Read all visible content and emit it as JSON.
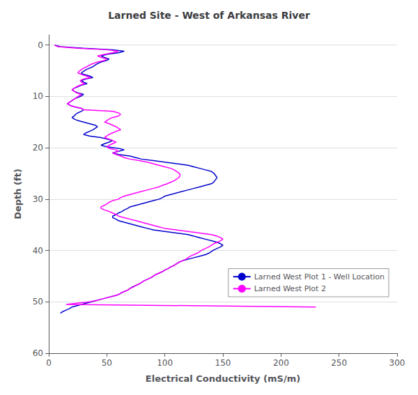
{
  "chart_data": {
    "type": "line",
    "title": "Larned Site - West of Arkansas River",
    "xlabel": "Electrical Conductivity (mS/m)",
    "ylabel": "Depth (ft)",
    "xlim": [
      0,
      300
    ],
    "ylim": [
      60,
      -2
    ],
    "xticks": [
      0,
      50,
      100,
      150,
      200,
      250,
      300
    ],
    "yticks": [
      0,
      10,
      20,
      30,
      40,
      50,
      60
    ],
    "grid": "y",
    "legend": "lower right",
    "series": [
      {
        "name": "Larned West Plot 1 - Well Location",
        "color": "#0000CD",
        "x": [
          5,
          10,
          30,
          55,
          65,
          60,
          50,
          45,
          48,
          52,
          50,
          45,
          42,
          40,
          38,
          35,
          32,
          30,
          28,
          30,
          35,
          38,
          32,
          28,
          30,
          33,
          28,
          25,
          22,
          20,
          22,
          25,
          30,
          28,
          25,
          22,
          20,
          18,
          16,
          18,
          22,
          28,
          30,
          28,
          25,
          23,
          22,
          20,
          22,
          25,
          30,
          35,
          40,
          42,
          40,
          38,
          35,
          32,
          30,
          35,
          45,
          50,
          55,
          52,
          48,
          45,
          50,
          60,
          65,
          60,
          55,
          60,
          70,
          75,
          80,
          90,
          100,
          110,
          120,
          125,
          130,
          135,
          140,
          142,
          143,
          144,
          145,
          144,
          143,
          142,
          140,
          135,
          130,
          125,
          120,
          115,
          110,
          105,
          100,
          98,
          95,
          90,
          85,
          80,
          75,
          70,
          68,
          65,
          63,
          60,
          58,
          55,
          55,
          58,
          60,
          65,
          70,
          75,
          80,
          85,
          90,
          100,
          110,
          120,
          125,
          130,
          135,
          140,
          145,
          148,
          150,
          148,
          145,
          142,
          140,
          138,
          135,
          130,
          125,
          120,
          115,
          112,
          110,
          108,
          105,
          103,
          100,
          98,
          95,
          92,
          90,
          88,
          85,
          82,
          80,
          78,
          75,
          72,
          70,
          68,
          65,
          62,
          60,
          55,
          50,
          45,
          40,
          35,
          30,
          25,
          20,
          18,
          15,
          12,
          10
        ],
        "values": [
          0.0,
          0.3,
          0.6,
          0.9,
          1.2,
          1.5,
          1.8,
          2.1,
          2.4,
          2.7,
          3.0,
          3.3,
          3.6,
          3.9,
          4.2,
          4.5,
          4.8,
          5.1,
          5.4,
          5.7,
          6.0,
          6.3,
          6.6,
          6.9,
          7.2,
          7.5,
          7.8,
          8.1,
          8.4,
          8.7,
          9.0,
          9.3,
          9.6,
          9.9,
          10.2,
          10.5,
          10.8,
          11.1,
          11.4,
          11.7,
          12.0,
          12.3,
          12.6,
          12.9,
          13.2,
          13.5,
          13.8,
          14.1,
          14.4,
          14.7,
          15.0,
          15.3,
          15.6,
          15.9,
          16.2,
          16.5,
          16.8,
          17.1,
          17.4,
          17.7,
          18.0,
          18.3,
          18.6,
          18.9,
          19.2,
          19.5,
          19.8,
          20.1,
          20.4,
          20.7,
          21.0,
          21.3,
          21.6,
          21.9,
          22.2,
          22.5,
          22.8,
          23.1,
          23.4,
          23.7,
          24.0,
          24.3,
          24.6,
          24.9,
          25.2,
          25.5,
          25.8,
          26.1,
          26.4,
          26.7,
          27.0,
          27.3,
          27.6,
          27.9,
          28.2,
          28.5,
          28.8,
          29.1,
          29.4,
          29.7,
          30.0,
          30.3,
          30.6,
          30.9,
          31.2,
          31.5,
          31.8,
          32.1,
          32.4,
          32.7,
          33.0,
          33.3,
          33.6,
          33.9,
          34.2,
          34.5,
          34.8,
          35.1,
          35.4,
          35.7,
          36.0,
          36.3,
          36.6,
          36.9,
          37.2,
          37.5,
          37.8,
          38.1,
          38.4,
          38.7,
          39.0,
          39.3,
          39.6,
          39.9,
          40.2,
          40.5,
          40.8,
          41.1,
          41.4,
          41.7,
          42.0,
          42.3,
          42.6,
          42.9,
          43.2,
          43.5,
          43.8,
          44.1,
          44.4,
          44.7,
          45.0,
          45.3,
          45.6,
          45.9,
          46.2,
          46.5,
          46.8,
          47.1,
          47.4,
          47.7,
          48.0,
          48.3,
          48.6,
          48.9,
          49.2,
          49.5,
          49.8,
          50.1,
          50.4,
          50.7,
          51.0,
          51.3,
          51.6,
          51.9,
          52.2
        ]
      },
      {
        "name": "Larned West Plot 2",
        "color": "#FF00FF",
        "x": [
          5,
          8,
          25,
          50,
          60,
          55,
          48,
          42,
          45,
          50,
          48,
          42,
          38,
          35,
          33,
          30,
          28,
          26,
          25,
          28,
          32,
          36,
          30,
          27,
          28,
          31,
          27,
          24,
          22,
          20,
          22,
          24,
          28,
          26,
          24,
          22,
          20,
          18,
          16,
          18,
          22,
          28,
          30,
          55,
          60,
          62,
          60,
          55,
          52,
          50,
          48,
          52,
          55,
          58,
          60,
          62,
          58,
          55,
          52,
          50,
          48,
          52,
          55,
          58,
          55,
          52,
          50,
          52,
          58,
          60,
          55,
          58,
          62,
          65,
          70,
          78,
          85,
          90,
          95,
          100,
          105,
          108,
          110,
          112,
          113,
          113,
          112,
          110,
          108,
          105,
          102,
          98,
          95,
          90,
          85,
          80,
          75,
          70,
          65,
          62,
          60,
          55,
          52,
          50,
          48,
          45,
          45,
          48,
          52,
          55,
          58,
          60,
          65,
          70,
          75,
          80,
          85,
          90,
          95,
          100,
          110,
          120,
          130,
          140,
          145,
          148,
          150,
          148,
          145,
          142,
          140,
          138,
          135,
          132,
          130,
          128,
          125,
          122,
          120,
          118,
          115,
          112,
          110,
          108,
          105,
          103,
          100,
          98,
          95,
          92,
          90,
          88,
          85,
          82,
          80,
          78,
          75,
          73,
          70,
          68,
          65,
          62,
          60,
          55,
          50,
          45,
          40,
          35,
          15,
          230
        ],
        "values": [
          0.0,
          0.3,
          0.6,
          0.9,
          1.2,
          1.5,
          1.8,
          2.1,
          2.4,
          2.7,
          3.0,
          3.3,
          3.6,
          3.9,
          4.2,
          4.5,
          4.8,
          5.1,
          5.4,
          5.7,
          6.0,
          6.3,
          6.6,
          6.9,
          7.2,
          7.5,
          7.8,
          8.1,
          8.4,
          8.7,
          9.0,
          9.3,
          9.6,
          9.9,
          10.2,
          10.5,
          10.8,
          11.1,
          11.4,
          11.7,
          12.0,
          12.3,
          12.6,
          12.9,
          13.2,
          13.5,
          13.8,
          14.1,
          14.4,
          14.7,
          15.0,
          15.3,
          15.6,
          15.9,
          16.2,
          16.5,
          16.8,
          17.1,
          17.4,
          17.7,
          18.0,
          18.3,
          18.6,
          18.9,
          19.2,
          19.5,
          19.8,
          20.1,
          20.4,
          20.7,
          21.0,
          21.3,
          21.6,
          21.9,
          22.2,
          22.5,
          22.8,
          23.1,
          23.4,
          23.7,
          24.0,
          24.3,
          24.6,
          24.9,
          25.2,
          25.5,
          25.8,
          26.1,
          26.4,
          26.7,
          27.0,
          27.3,
          27.6,
          27.9,
          28.2,
          28.5,
          28.8,
          29.1,
          29.4,
          29.7,
          30.0,
          30.3,
          30.6,
          30.9,
          31.2,
          31.5,
          31.8,
          32.1,
          32.4,
          32.7,
          33.0,
          33.3,
          33.6,
          33.9,
          34.2,
          34.5,
          34.8,
          35.1,
          35.4,
          35.7,
          36.0,
          36.3,
          36.6,
          36.9,
          37.2,
          37.5,
          37.8,
          38.1,
          38.4,
          38.7,
          39.0,
          39.3,
          39.6,
          39.9,
          40.2,
          40.5,
          40.8,
          41.1,
          41.4,
          41.7,
          42.0,
          42.3,
          42.6,
          42.9,
          43.2,
          43.5,
          43.8,
          44.1,
          44.4,
          44.7,
          45.0,
          45.3,
          45.6,
          45.9,
          46.2,
          46.5,
          46.8,
          47.1,
          47.4,
          47.7,
          48.0,
          48.3,
          48.6,
          48.9,
          49.2,
          49.5,
          49.8,
          50.0,
          50.5,
          51.0
        ]
      }
    ]
  }
}
